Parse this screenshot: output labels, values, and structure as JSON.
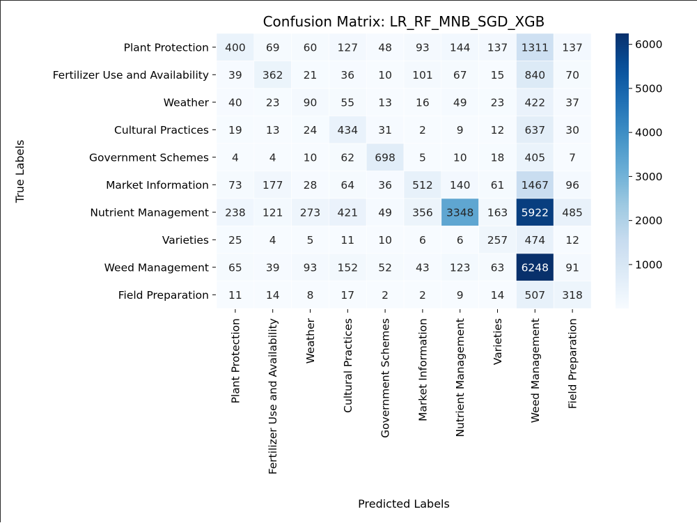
{
  "chart_data": {
    "type": "heatmap",
    "title": "Confusion Matrix: LR_RF_MNB_SGD_XGB",
    "xlabel": "Predicted Labels",
    "ylabel": "True Labels",
    "row_labels": [
      "Plant Protection",
      "Fertilizer Use and Availability",
      "Weather",
      "Cultural Practices",
      "Government Schemes",
      "Market Information",
      "Nutrient Management",
      "Varieties",
      "Weed Management",
      "Field Preparation"
    ],
    "col_labels": [
      "Plant Protection",
      "Fertilizer Use and Availability",
      "Weather",
      "Cultural Practices",
      "Government Schemes",
      "Market Information",
      "Nutrient Management",
      "Varieties",
      "Weed Management",
      "Field Preparation"
    ],
    "values": [
      [
        400,
        69,
        60,
        127,
        48,
        93,
        144,
        137,
        1311,
        137
      ],
      [
        39,
        362,
        21,
        36,
        10,
        101,
        67,
        15,
        840,
        70
      ],
      [
        40,
        23,
        90,
        55,
        13,
        16,
        49,
        23,
        422,
        37
      ],
      [
        19,
        13,
        24,
        434,
        31,
        2,
        9,
        12,
        637,
        30
      ],
      [
        4,
        4,
        10,
        62,
        698,
        5,
        10,
        18,
        405,
        7
      ],
      [
        73,
        177,
        28,
        64,
        36,
        512,
        140,
        61,
        1467,
        96
      ],
      [
        238,
        121,
        273,
        421,
        49,
        356,
        3348,
        163,
        5922,
        485
      ],
      [
        25,
        4,
        5,
        11,
        10,
        6,
        6,
        257,
        474,
        12
      ],
      [
        65,
        39,
        93,
        152,
        52,
        43,
        123,
        63,
        6248,
        91
      ],
      [
        11,
        14,
        8,
        17,
        2,
        2,
        9,
        14,
        507,
        318
      ]
    ],
    "colormap": "Blues",
    "vmin": 2,
    "vmax": 6248,
    "colorbar_ticks": [
      1000,
      2000,
      3000,
      4000,
      5000,
      6000
    ],
    "annotations": true,
    "grid": false
  }
}
